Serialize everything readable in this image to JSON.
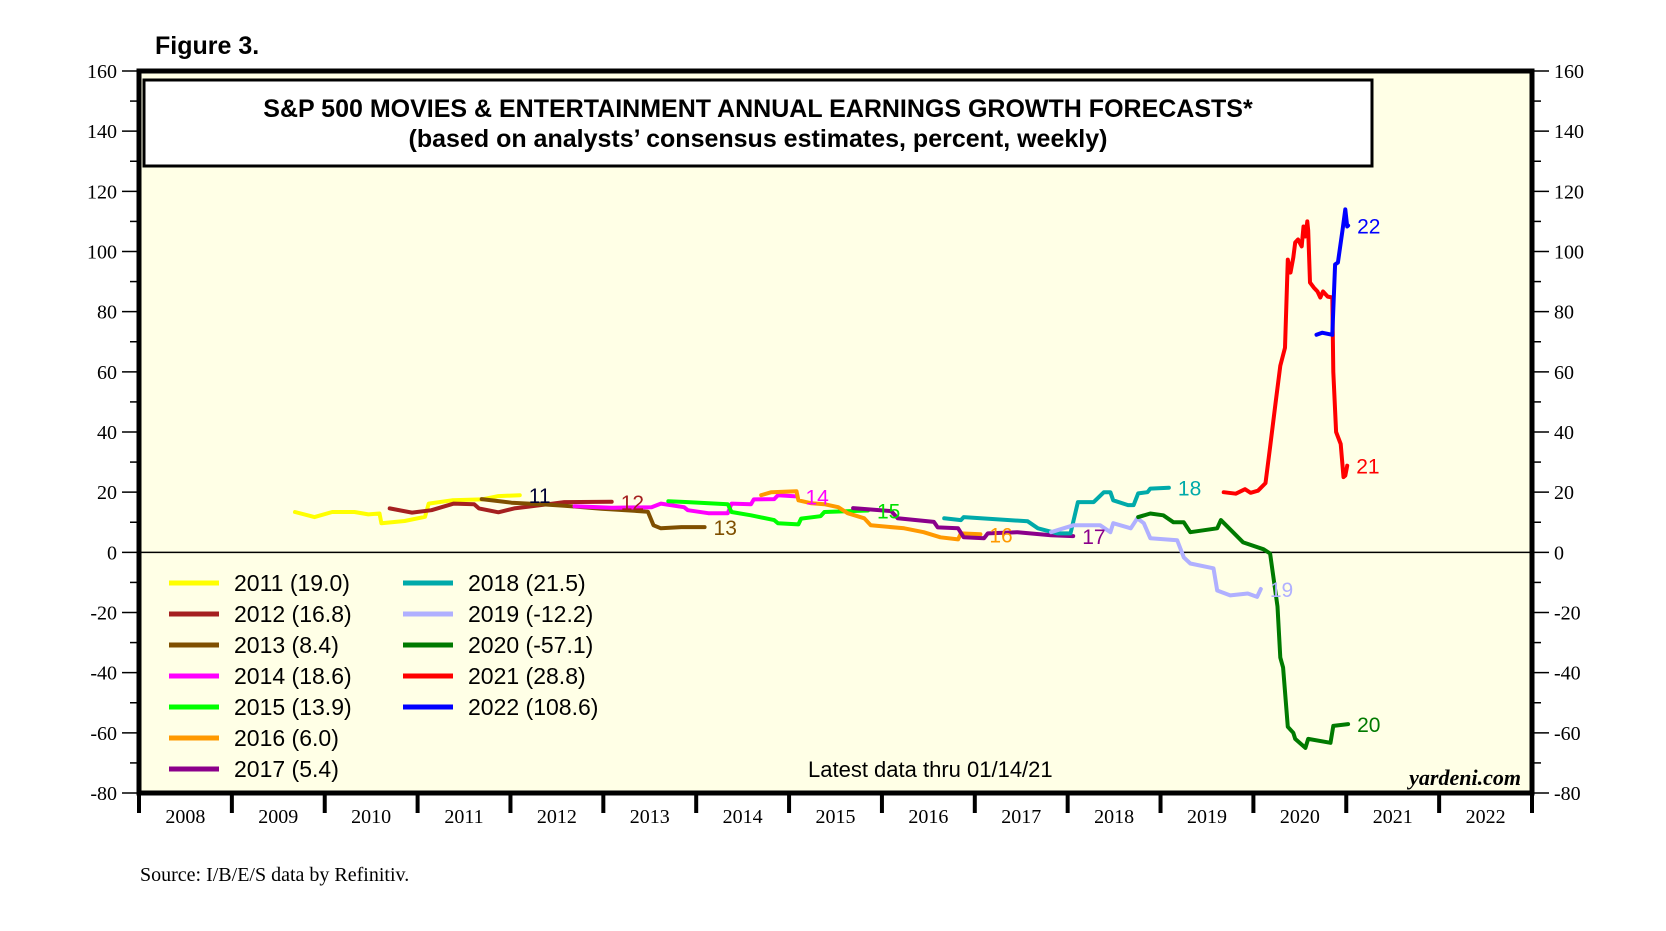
{
  "figure_label": "Figure 3.",
  "source": "Source: I/B/E/S data by Refinitiv.",
  "watermark": "yardeni.com",
  "latest_note": "Latest data thru 01/14/21",
  "colors": {
    "plot_background": "#ffffe6",
    "frame": "#000000"
  },
  "chart_data": {
    "type": "line",
    "title": "S&P 500 MOVIES & ENTERTAINMENT ANNUAL EARNINGS GROWTH FORECASTS*",
    "subtitle": "(based on analysts’ consensus estimates, percent, weekly)",
    "xlabel": "",
    "ylabel": "",
    "xlim": [
      2008,
      2023
    ],
    "ylim": [
      -80,
      160
    ],
    "x_tick_labels": [
      "2008",
      "2009",
      "2010",
      "2011",
      "2012",
      "2013",
      "2014",
      "2015",
      "2016",
      "2017",
      "2018",
      "2019",
      "2020",
      "2021",
      "2022"
    ],
    "y_ticks": [
      -80,
      -60,
      -40,
      -20,
      0,
      20,
      40,
      60,
      80,
      100,
      120,
      140,
      160
    ],
    "y_axis_both_sides": true,
    "grid": false,
    "zero_line": true,
    "legend_placement": "bottom-left",
    "series": [
      {
        "name": "2011 (19.0)",
        "end_label": "11",
        "label_color": "#000033",
        "color": "#ffff00",
        "points": [
          [
            2009.68,
            13.4
          ],
          [
            2009.89,
            11.7
          ],
          [
            2010.08,
            13.4
          ],
          [
            2010.32,
            13.4
          ],
          [
            2010.47,
            12.6
          ],
          [
            2010.59,
            12.9
          ],
          [
            2010.61,
            9.7
          ],
          [
            2010.86,
            10.4
          ],
          [
            2011.08,
            11.8
          ],
          [
            2011.12,
            16.2
          ],
          [
            2011.37,
            17.3
          ],
          [
            2011.69,
            17.6
          ],
          [
            2011.87,
            18.7
          ],
          [
            2012.1,
            19.0
          ]
        ]
      },
      {
        "name": "2012 (16.8)",
        "end_label": "12",
        "label_color": "#a52020",
        "color": "#a52020",
        "points": [
          [
            2010.7,
            14.6
          ],
          [
            2010.94,
            13.2
          ],
          [
            2011.15,
            14.0
          ],
          [
            2011.39,
            16.2
          ],
          [
            2011.61,
            16.0
          ],
          [
            2011.66,
            14.6
          ],
          [
            2011.87,
            13.3
          ],
          [
            2012.04,
            14.6
          ],
          [
            2012.28,
            15.5
          ],
          [
            2012.58,
            16.7
          ],
          [
            2013.09,
            16.8
          ]
        ]
      },
      {
        "name": "2013 (8.4)",
        "end_label": "13",
        "label_color": "#7f4f00",
        "color": "#7f4f00",
        "points": [
          [
            2011.69,
            17.7
          ],
          [
            2012.01,
            16.5
          ],
          [
            2012.33,
            16.0
          ],
          [
            2012.58,
            15.5
          ],
          [
            2012.98,
            14.5
          ],
          [
            2013.48,
            13.5
          ],
          [
            2013.54,
            9.0
          ],
          [
            2013.62,
            8.0
          ],
          [
            2013.84,
            8.4
          ],
          [
            2014.09,
            8.4
          ]
        ]
      },
      {
        "name": "2014 (18.6)",
        "end_label": "14",
        "label_color": "#ff00ff",
        "color": "#ff00ff",
        "points": [
          [
            2012.69,
            15.3
          ],
          [
            2013.09,
            14.8
          ],
          [
            2013.52,
            15.0
          ],
          [
            2013.62,
            16.2
          ],
          [
            2013.87,
            15.0
          ],
          [
            2013.91,
            14.0
          ],
          [
            2014.13,
            13.0
          ],
          [
            2014.34,
            13.0
          ],
          [
            2014.38,
            16.2
          ],
          [
            2014.59,
            16.0
          ],
          [
            2014.62,
            17.6
          ],
          [
            2014.84,
            17.7
          ],
          [
            2014.88,
            19.0
          ],
          [
            2015.08,
            18.6
          ]
        ]
      },
      {
        "name": "2015 (13.9)",
        "end_label": "15",
        "label_color": "#00e000",
        "color": "#00ff00",
        "points": [
          [
            2013.7,
            17.0
          ],
          [
            2013.91,
            16.7
          ],
          [
            2014.34,
            16.0
          ],
          [
            2014.38,
            13.4
          ],
          [
            2014.59,
            12.3
          ],
          [
            2014.84,
            10.7
          ],
          [
            2014.88,
            9.7
          ],
          [
            2015.1,
            9.3
          ],
          [
            2015.13,
            11.2
          ],
          [
            2015.34,
            12.0
          ],
          [
            2015.38,
            13.4
          ],
          [
            2015.85,
            13.9
          ]
        ]
      },
      {
        "name": "2016 (6.0)",
        "end_label": "16",
        "label_color": "#ff9900",
        "color": "#ff9900",
        "points": [
          [
            2014.7,
            19.0
          ],
          [
            2014.81,
            20.0
          ],
          [
            2015.08,
            20.3
          ],
          [
            2015.1,
            17.3
          ],
          [
            2015.24,
            16.3
          ],
          [
            2015.38,
            16.0
          ],
          [
            2015.53,
            15.0
          ],
          [
            2015.63,
            13.0
          ],
          [
            2015.81,
            11.3
          ],
          [
            2015.88,
            9.0
          ],
          [
            2016.24,
            8.0
          ],
          [
            2016.45,
            6.7
          ],
          [
            2016.63,
            5.0
          ],
          [
            2016.82,
            4.3
          ],
          [
            2016.85,
            6.3
          ],
          [
            2017.06,
            6.0
          ]
        ]
      },
      {
        "name": "2017 (5.4)",
        "end_label": "17",
        "label_color": "#8b008b",
        "color": "#8b008b",
        "points": [
          [
            2015.69,
            14.7
          ],
          [
            2016.1,
            13.7
          ],
          [
            2016.17,
            11.3
          ],
          [
            2016.56,
            10.1
          ],
          [
            2016.6,
            8.3
          ],
          [
            2016.82,
            8.0
          ],
          [
            2016.88,
            5.0
          ],
          [
            2017.1,
            4.7
          ],
          [
            2017.14,
            6.3
          ],
          [
            2017.46,
            6.7
          ],
          [
            2017.82,
            5.7
          ],
          [
            2018.06,
            5.4
          ]
        ]
      },
      {
        "name": "2018 (21.5)",
        "end_label": "18",
        "label_color": "#00aaaa",
        "color": "#00aaaa",
        "points": [
          [
            2016.67,
            11.3
          ],
          [
            2016.85,
            10.7
          ],
          [
            2016.88,
            11.7
          ],
          [
            2017.57,
            10.3
          ],
          [
            2017.68,
            8.0
          ],
          [
            2017.89,
            6.3
          ],
          [
            2018.03,
            6.3
          ],
          [
            2018.11,
            16.7
          ],
          [
            2018.28,
            16.7
          ],
          [
            2018.39,
            20.0
          ],
          [
            2018.46,
            20.0
          ],
          [
            2018.49,
            17.3
          ],
          [
            2018.65,
            15.7
          ],
          [
            2018.71,
            15.7
          ],
          [
            2018.76,
            19.6
          ],
          [
            2018.86,
            20.0
          ],
          [
            2018.89,
            21.2
          ],
          [
            2019.09,
            21.5
          ]
        ]
      },
      {
        "name": "2019 (-12.2)",
        "end_label": "19",
        "label_color": "#b0b0ff",
        "color": "#b0b0ff",
        "points": [
          [
            2017.82,
            6.7
          ],
          [
            2018.06,
            9.0
          ],
          [
            2018.35,
            9.0
          ],
          [
            2018.46,
            6.7
          ],
          [
            2018.49,
            9.7
          ],
          [
            2018.68,
            8.0
          ],
          [
            2018.75,
            11.3
          ],
          [
            2018.82,
            9.7
          ],
          [
            2018.89,
            4.7
          ],
          [
            2019.18,
            4.0
          ],
          [
            2019.25,
            -1.7
          ],
          [
            2019.32,
            -3.7
          ],
          [
            2019.57,
            -5.3
          ],
          [
            2019.61,
            -12.7
          ],
          [
            2019.75,
            -14.3
          ],
          [
            2019.94,
            -13.7
          ],
          [
            2020.04,
            -14.8
          ],
          [
            2020.08,
            -12.2
          ]
        ]
      },
      {
        "name": "2020 (-57.1)",
        "end_label": "20",
        "label_color": "#007a00",
        "color": "#007a00",
        "points": [
          [
            2018.76,
            11.7
          ],
          [
            2018.89,
            12.9
          ],
          [
            2019.03,
            12.3
          ],
          [
            2019.14,
            10.0
          ],
          [
            2019.25,
            10.0
          ],
          [
            2019.32,
            6.7
          ],
          [
            2019.61,
            8.0
          ],
          [
            2019.65,
            10.7
          ],
          [
            2019.78,
            6.7
          ],
          [
            2019.89,
            3.3
          ],
          [
            2020.11,
            1.0
          ],
          [
            2020.18,
            -0.4
          ],
          [
            2020.26,
            -18.0
          ],
          [
            2020.29,
            -35.0
          ],
          [
            2020.32,
            -38.3
          ],
          [
            2020.37,
            -58.0
          ],
          [
            2020.43,
            -60.0
          ],
          [
            2020.45,
            -62.0
          ],
          [
            2020.56,
            -65.0
          ],
          [
            2020.59,
            -62.0
          ],
          [
            2020.83,
            -63.3
          ],
          [
            2020.86,
            -57.7
          ],
          [
            2021.02,
            -57.1
          ]
        ]
      },
      {
        "name": "2021 (28.8)",
        "end_label": "21",
        "label_color": "#ff0000",
        "color": "#ff0000",
        "points": [
          [
            2019.68,
            20.0
          ],
          [
            2019.81,
            19.5
          ],
          [
            2019.91,
            21.0
          ],
          [
            2019.97,
            19.8
          ],
          [
            2020.05,
            20.5
          ],
          [
            2020.13,
            23.0
          ],
          [
            2020.18,
            35.0
          ],
          [
            2020.24,
            50.0
          ],
          [
            2020.29,
            62.0
          ],
          [
            2020.34,
            68.0
          ],
          [
            2020.37,
            97.3
          ],
          [
            2020.4,
            93.0
          ],
          [
            2020.43,
            98.0
          ],
          [
            2020.45,
            103.0
          ],
          [
            2020.48,
            104.0
          ],
          [
            2020.52,
            101.7
          ],
          [
            2020.54,
            108.3
          ],
          [
            2020.56,
            105.0
          ],
          [
            2020.58,
            110.0
          ],
          [
            2020.59,
            107.0
          ],
          [
            2020.61,
            89.7
          ],
          [
            2020.65,
            88.0
          ],
          [
            2020.69,
            86.7
          ],
          [
            2020.72,
            84.7
          ],
          [
            2020.75,
            86.7
          ],
          [
            2020.8,
            85.0
          ],
          [
            2020.85,
            84.7
          ],
          [
            2020.86,
            60.0
          ],
          [
            2020.89,
            40.0
          ],
          [
            2020.94,
            36.0
          ],
          [
            2020.97,
            25.0
          ],
          [
            2020.99,
            25.5
          ],
          [
            2021.01,
            28.8
          ]
        ]
      },
      {
        "name": "2022 (108.6)",
        "end_label": "22",
        "label_color": "#0000ff",
        "color": "#0000ff",
        "points": [
          [
            2020.68,
            72.3
          ],
          [
            2020.74,
            73.0
          ],
          [
            2020.85,
            72.3
          ],
          [
            2020.88,
            95.7
          ],
          [
            2020.91,
            96.3
          ],
          [
            2020.96,
            107.3
          ],
          [
            2020.99,
            114.0
          ],
          [
            2021.01,
            108.3
          ],
          [
            2021.02,
            108.6
          ]
        ]
      }
    ]
  }
}
